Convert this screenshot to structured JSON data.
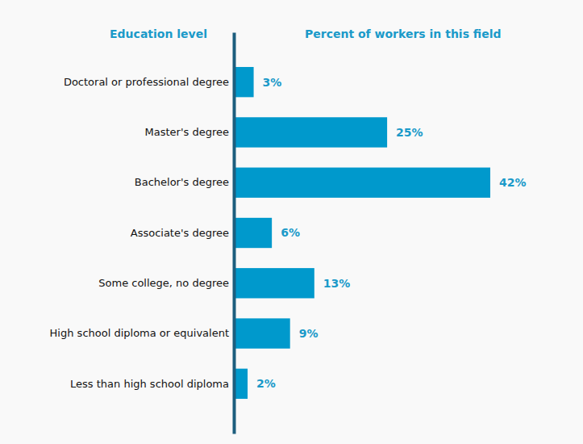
{
  "chart_data": {
    "type": "bar",
    "orientation": "horizontal",
    "ylabel": "Education level",
    "xlabel": "Percent of workers in this field",
    "categories": [
      "Doctoral or professional degree",
      "Master's degree",
      "Bachelor's degree",
      "Associate's degree",
      "Some college, no degree",
      "High school diploma or equivalent",
      "Less than high school diploma"
    ],
    "values": [
      3,
      25,
      42,
      6,
      13,
      9,
      2
    ],
    "value_labels": [
      "3%",
      "25%",
      "42%",
      "6%",
      "13%",
      "9%",
      "2%"
    ],
    "color": "#0099cc",
    "xlim": [
      0,
      42
    ],
    "data_labels": true,
    "tick_labels": "y"
  }
}
